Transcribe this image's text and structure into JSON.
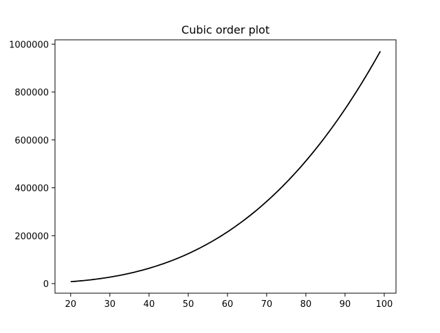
{
  "chart_data": {
    "type": "line",
    "title": "Cubic order plot",
    "xlabel": "",
    "ylabel": "",
    "xlim": [
      16,
      103
    ],
    "ylim": [
      -40000,
      1018000
    ],
    "x_ticks": [
      20,
      30,
      40,
      50,
      60,
      70,
      80,
      90,
      100
    ],
    "x_tick_labels": [
      "20",
      "30",
      "40",
      "50",
      "60",
      "70",
      "80",
      "90",
      "100"
    ],
    "y_ticks": [
      0,
      200000,
      400000,
      600000,
      800000,
      1000000
    ],
    "y_tick_labels": [
      "0",
      "200000",
      "400000",
      "600000",
      "800000",
      "1000000"
    ],
    "grid": false,
    "legend": "none",
    "series": [
      {
        "color": "#000000",
        "x": [
          20,
          25,
          30,
          35,
          40,
          45,
          50,
          55,
          60,
          65,
          70,
          75,
          80,
          85,
          90,
          95,
          99
        ],
        "y": [
          8000,
          15625,
          27000,
          42875,
          64000,
          91125,
          125000,
          166375,
          216000,
          274625,
          343000,
          421875,
          512000,
          614125,
          729000,
          857375,
          970299
        ]
      }
    ]
  }
}
